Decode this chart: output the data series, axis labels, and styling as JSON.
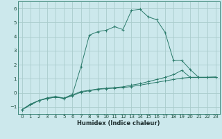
{
  "xlabel": "Humidex (Indice chaleur)",
  "bg_color": "#cce8ec",
  "grid_color": "#aacccc",
  "line_color": "#2a7a6a",
  "spine_color": "#2a7a6a",
  "xlim": [
    -0.5,
    23.5
  ],
  "ylim": [
    -1.5,
    6.5
  ],
  "xticks": [
    0,
    1,
    2,
    3,
    4,
    5,
    6,
    7,
    8,
    9,
    10,
    11,
    12,
    13,
    14,
    15,
    16,
    17,
    18,
    19,
    20,
    21,
    22,
    23
  ],
  "yticks": [
    -1,
    0,
    1,
    2,
    3,
    4,
    5,
    6
  ],
  "series": [
    {
      "x": [
        0,
        1,
        2,
        3,
        4,
        5,
        6,
        7,
        8,
        9,
        10,
        11,
        12,
        13,
        14,
        15,
        16,
        17,
        18,
        19,
        20,
        21,
        22,
        23
      ],
      "y": [
        -1.2,
        -0.8,
        -0.55,
        -0.4,
        -0.3,
        -0.4,
        -0.2,
        0.05,
        0.15,
        0.25,
        0.3,
        0.33,
        0.38,
        0.45,
        0.55,
        0.65,
        0.75,
        0.85,
        0.95,
        1.05,
        1.1,
        1.1,
        1.1,
        1.12
      ]
    },
    {
      "x": [
        0,
        1,
        2,
        3,
        4,
        5,
        6,
        7,
        8,
        9,
        10,
        11,
        12,
        13,
        14,
        15,
        16,
        17,
        18,
        19,
        20,
        21,
        22,
        23
      ],
      "y": [
        -1.2,
        -0.8,
        -0.55,
        -0.4,
        -0.3,
        -0.38,
        -0.15,
        0.1,
        0.18,
        0.28,
        0.33,
        0.38,
        0.43,
        0.55,
        0.65,
        0.8,
        0.95,
        1.1,
        1.3,
        1.6,
        1.1,
        1.1,
        1.1,
        1.12
      ]
    },
    {
      "x": [
        0,
        2,
        3,
        4,
        5,
        6,
        7,
        8,
        9,
        10,
        11,
        12,
        13,
        14,
        15,
        16,
        17,
        18,
        19,
        20,
        21,
        22,
        23
      ],
      "y": [
        -1.2,
        -0.55,
        -0.35,
        -0.25,
        -0.38,
        -0.1,
        1.85,
        4.1,
        4.35,
        4.45,
        4.7,
        4.5,
        5.85,
        5.95,
        5.4,
        5.2,
        4.3,
        2.3,
        2.3,
        1.65,
        1.1,
        1.1,
        1.12
      ]
    }
  ]
}
